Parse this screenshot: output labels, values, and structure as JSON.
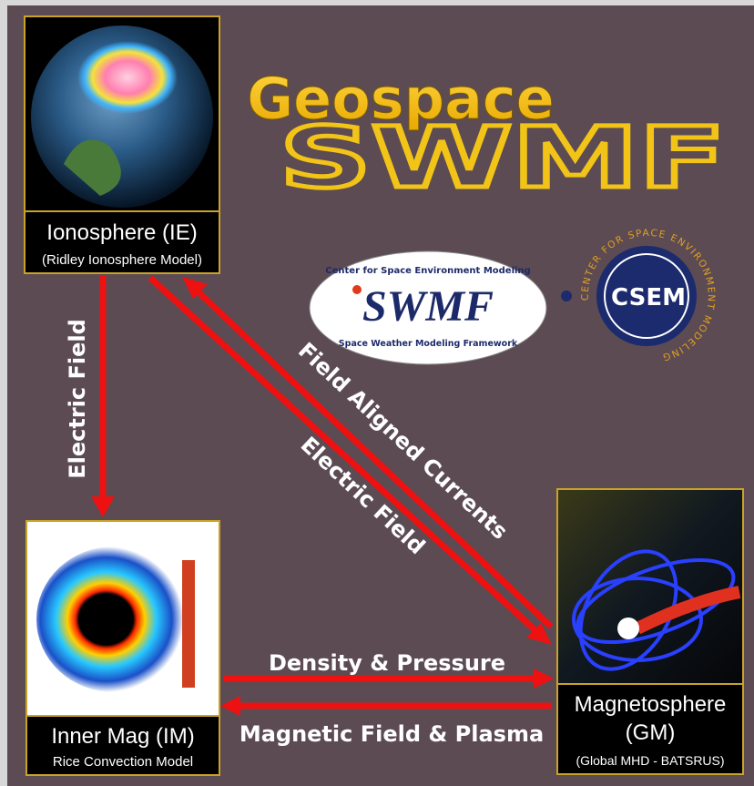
{
  "header": {
    "title": "Geospace",
    "subtitle": "SWMF"
  },
  "logos": {
    "swmf": {
      "top": "Center for Space Environment Modeling",
      "main": "SWMF",
      "bottom": "Space Weather Modeling Framework"
    },
    "csem": {
      "main": "CSEM",
      "ring": "CENTER FOR SPACE ENVIRONMENT MODELING"
    }
  },
  "nodes": [
    {
      "label": "Ionosphere (IE)",
      "sublabel": "(Ridley Ionosphere Model)"
    },
    {
      "label": "Inner Mag (IM)",
      "sublabel": "Rice Convection Model"
    },
    {
      "label": "Magnetosphere",
      "label2": "(GM)",
      "sublabel": "(Global MHD - BATSRUS)"
    }
  ],
  "edges": [
    {
      "label": "Electric Field"
    },
    {
      "label": "Field Aligned Currents"
    },
    {
      "label": "Electric Field"
    },
    {
      "label": "Density & Pressure"
    },
    {
      "label": "Magnetic Field & Plasma"
    }
  ]
}
